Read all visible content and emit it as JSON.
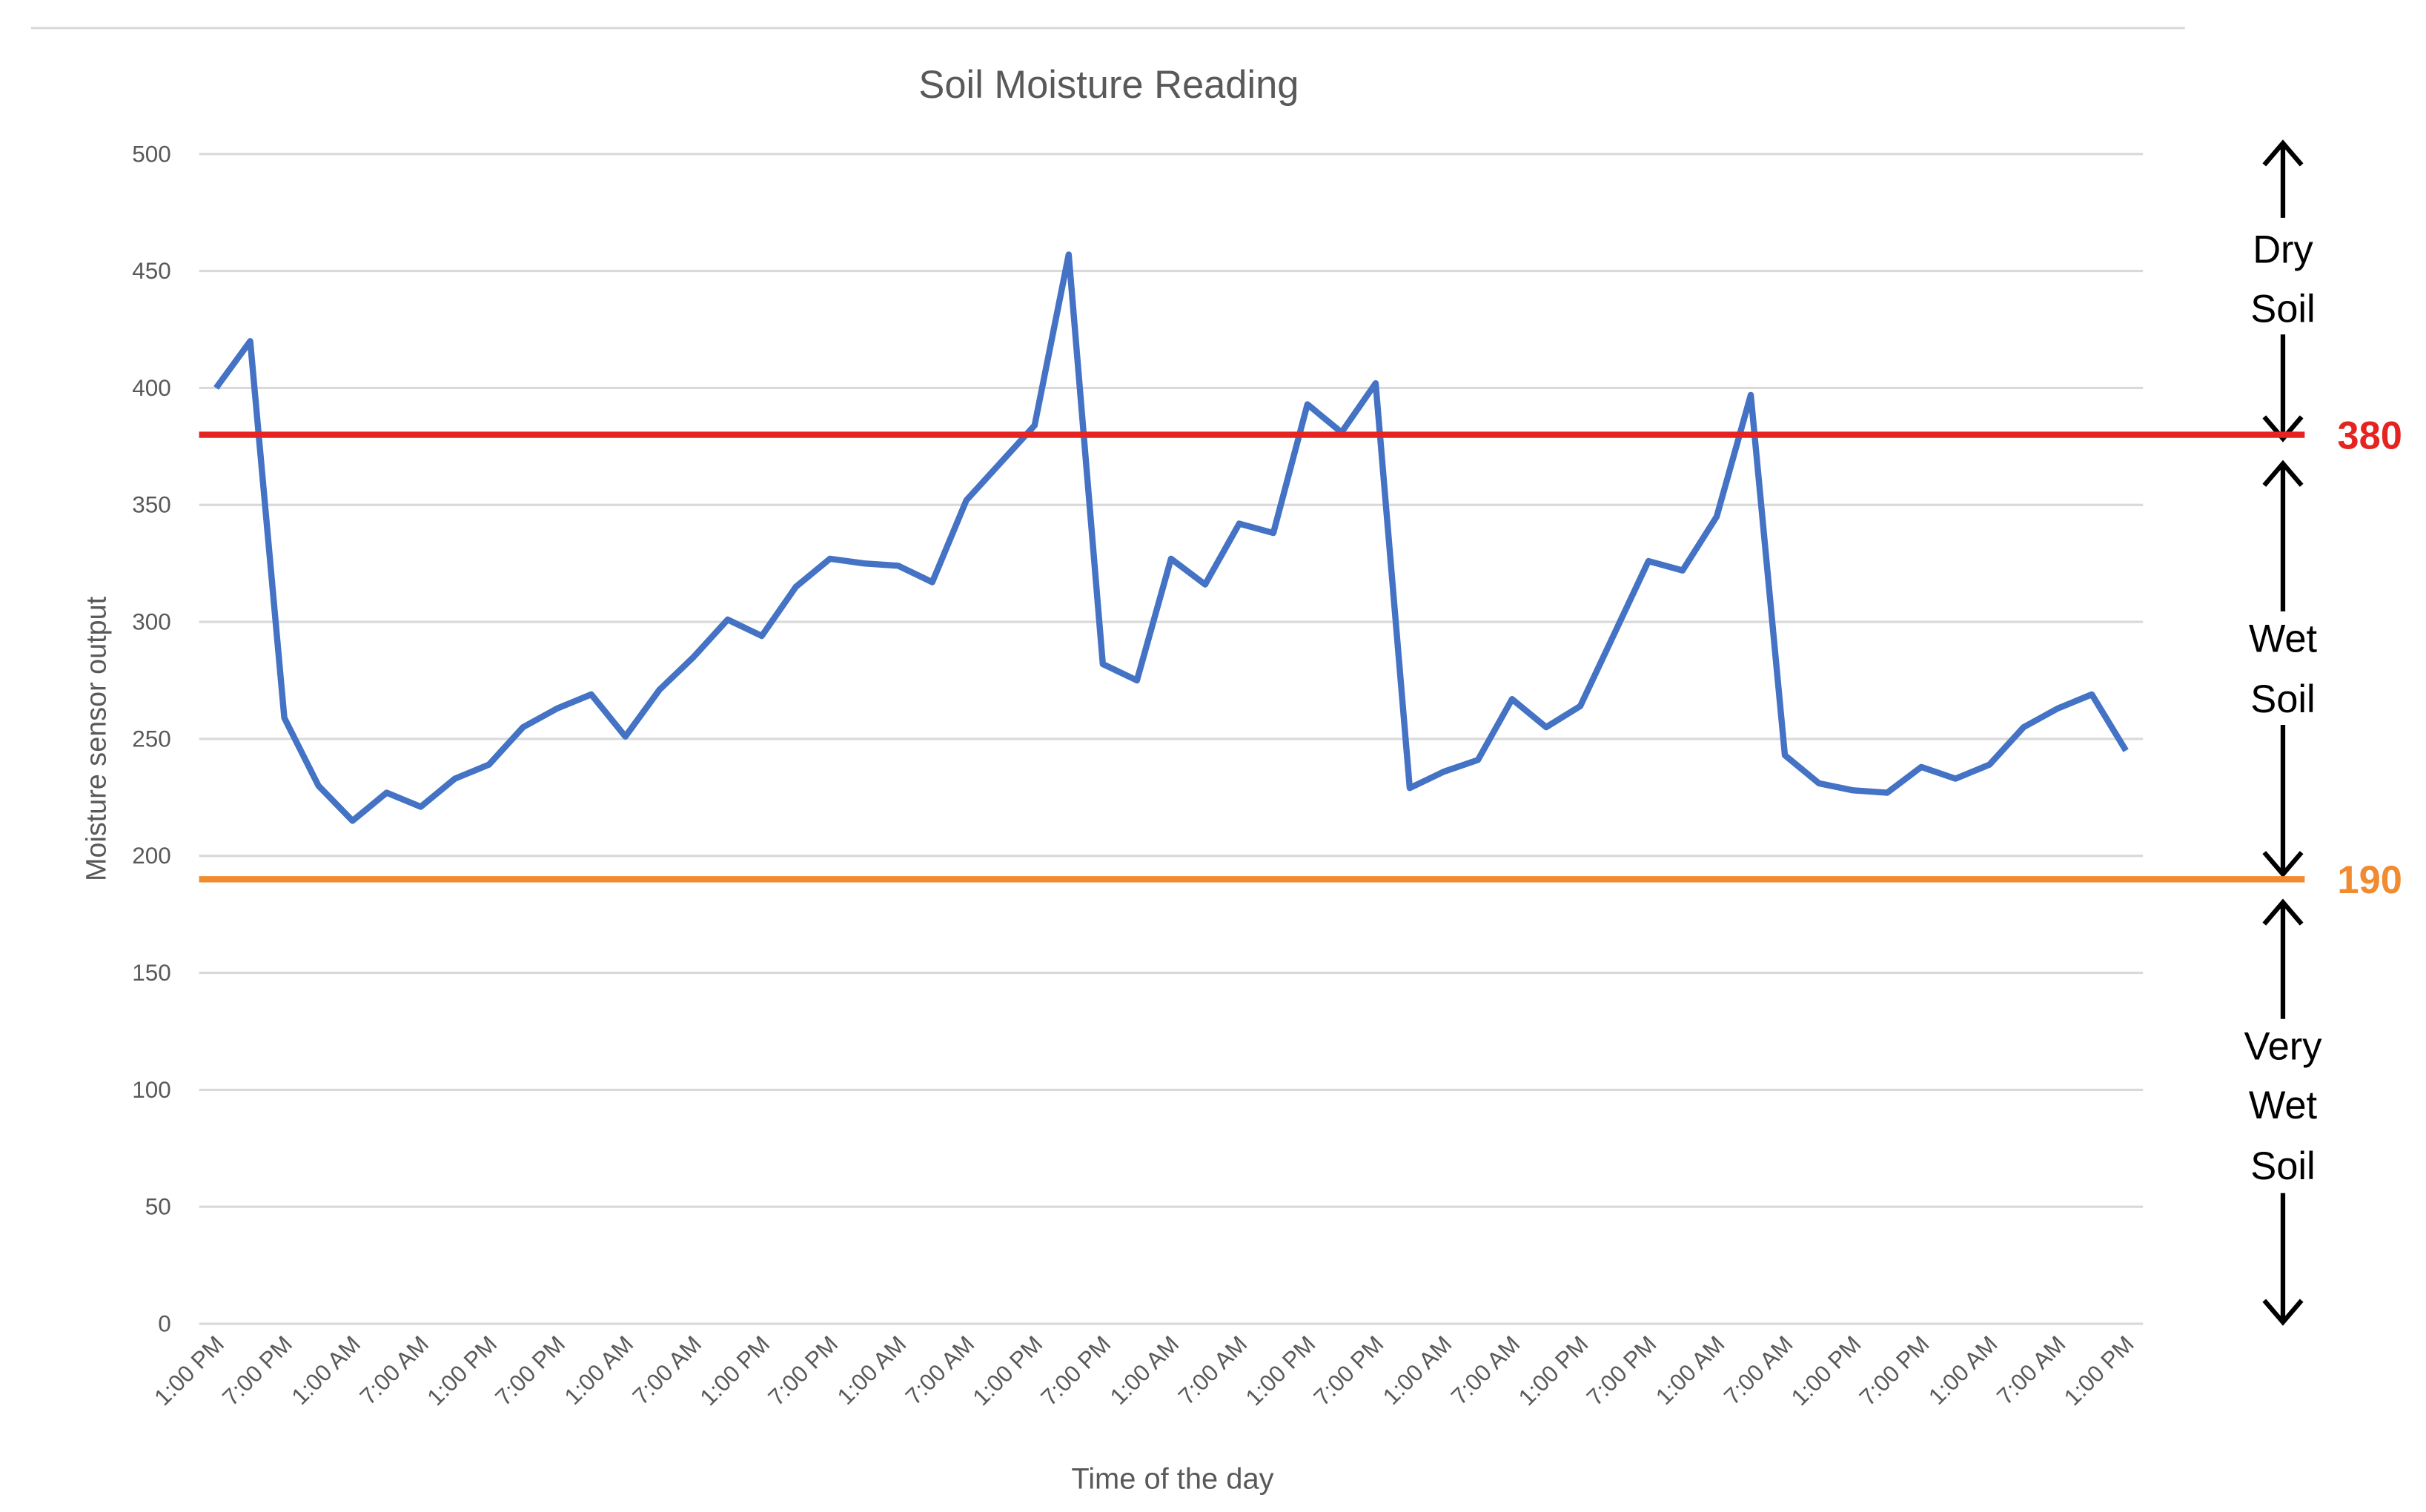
{
  "chart_data": {
    "type": "line",
    "title": "Soil Moisture Reading",
    "x_label": "Time of the day",
    "y_label": "Moisture sensor output",
    "categories": [
      "1:00 PM",
      null,
      "7:00 PM",
      null,
      "1:00 AM",
      null,
      "7:00 AM",
      null,
      "1:00 PM",
      null,
      "7:00 PM",
      null,
      "1:00 AM",
      null,
      "7:00 AM",
      null,
      "1:00 PM",
      null,
      "7:00 PM",
      null,
      "1:00 AM",
      null,
      "7:00 AM",
      null,
      "1:00 PM",
      null,
      "7:00 PM",
      null,
      "1:00 AM",
      null,
      "7:00 AM",
      null,
      "1:00 PM",
      null,
      "7:00 PM",
      null,
      "1:00 AM",
      null,
      "7:00 AM",
      null,
      "1:00 PM",
      null,
      "7:00 PM",
      null,
      "1:00 AM",
      null,
      "7:00 AM",
      null,
      "1:00 PM",
      null,
      "7:00 PM",
      null,
      "1:00 AM",
      null,
      "7:00 AM",
      null,
      "1:00 PM"
    ],
    "series": [
      {
        "name": "Moisture sensor output",
        "color": "#4472c4",
        "values": [
          400,
          420,
          259,
          230,
          215,
          227,
          221,
          233,
          239,
          255,
          263,
          269,
          251,
          271,
          285,
          301,
          294,
          315,
          327,
          325,
          324,
          317,
          352,
          368,
          384,
          457,
          282,
          275,
          327,
          316,
          342,
          338,
          393,
          381,
          402,
          229,
          236,
          241,
          267,
          255,
          264,
          295,
          326,
          322,
          345,
          397,
          243,
          231,
          228,
          227,
          238,
          233,
          239,
          255,
          263,
          269,
          245
        ]
      }
    ],
    "ylim": [
      0,
      500
    ],
    "yticks": [
      0,
      50,
      100,
      150,
      200,
      250,
      300,
      350,
      400,
      450,
      500
    ],
    "grid": true,
    "thresholds": [
      {
        "value": 380,
        "color": "#e52421"
      },
      {
        "value": 190,
        "color": "#f28a30"
      }
    ],
    "zones": [
      {
        "lines": [
          "Dry",
          "Soil"
        ]
      },
      {
        "lines": [
          "Wet",
          "Soil"
        ]
      },
      {
        "lines": [
          "Very",
          "Wet",
          "Soil"
        ]
      }
    ]
  }
}
